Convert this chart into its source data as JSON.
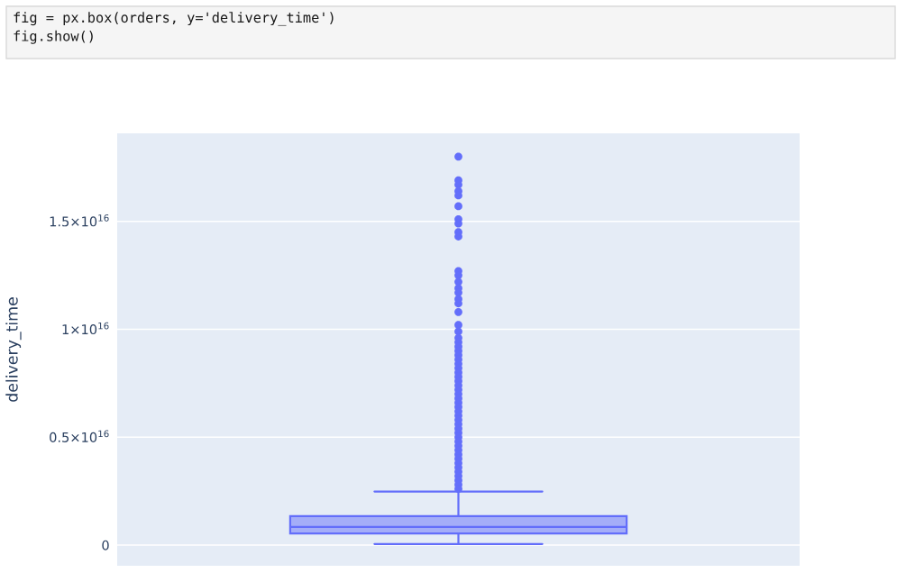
{
  "chart_data": {
    "type": "box",
    "ylabel": "delivery_time",
    "categories": [
      null
    ],
    "color": "#636efa",
    "marker": "circle",
    "boxes": [
      {
        "low": 50000000000000.0,
        "q1": 540000000000000.0,
        "median": 840000000000000.0,
        "q3": 1340000000000000.0,
        "high": 2480000000000000.0,
        "outliers": [
          1.8e+16,
          1.69e+16,
          1.67e+16,
          1.64e+16,
          1.62e+16,
          1.57e+16,
          1.51e+16,
          1.49e+16,
          1.45e+16,
          1.43e+16,
          1.27e+16,
          1.25e+16,
          1.22e+16,
          1.19e+16,
          1.17e+16,
          1.14e+16,
          1.12e+16,
          1.08e+16,
          1.02e+16,
          9900000000000000.0,
          9600000000000000.0,
          9400000000000000.0,
          9200000000000000.0,
          9000000000000000.0,
          8800000000000000.0,
          8600000000000000.0,
          8400000000000000.0,
          8200000000000000.0,
          8000000000000000.0,
          7800000000000000.0,
          7600000000000000.0,
          7400000000000000.0,
          7200000000000000.0,
          7000000000000000.0,
          6800000000000000.0,
          6600000000000000.0,
          6400000000000000.0,
          6200000000000000.0,
          6000000000000000.0,
          5800000000000000.0,
          5600000000000000.0,
          5400000000000000.0,
          5200000000000000.0,
          5000000000000000.0,
          4800000000000000.0,
          4600000000000000.0,
          4400000000000000.0,
          4200000000000000.0,
          4000000000000000.0,
          3800000000000000.0,
          3600000000000000.0,
          3400000000000000.0,
          3200000000000000.0,
          3000000000000000.0,
          2800000000000000.0,
          2600000000000000.0
        ]
      }
    ],
    "ylim": [
      -960000000000000.0,
      1.908e+16
    ],
    "yticks": [
      0,
      {
        "value": 5000000000000000.0,
        "label": "0.5×10$^{16}$"
      },
      {
        "value": 1e+16,
        "label": "1×10$^{16}$"
      },
      {
        "value": 1.5e+16,
        "label": "1.5×10$^{16}$"
      }
    ],
    "grid": "y",
    "tick_labels": "y",
    "annotations": [
      "fig = px.box(orders, y='delivery_time')\nfig.show()"
    ]
  }
}
